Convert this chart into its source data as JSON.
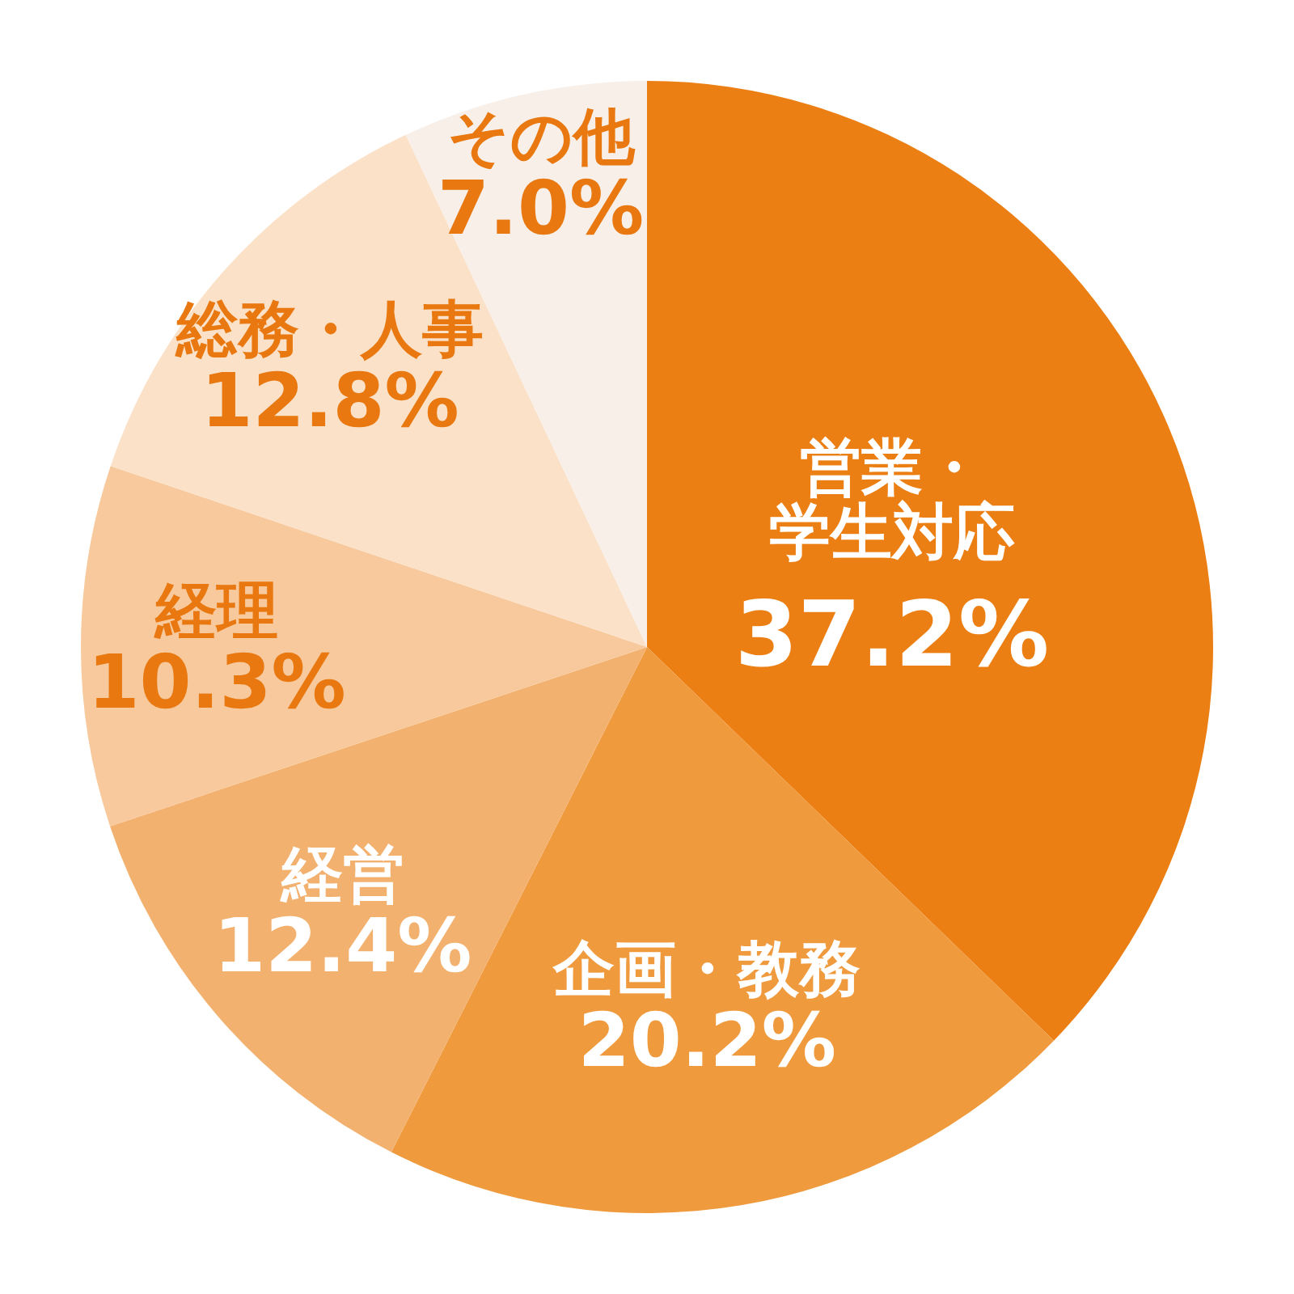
{
  "chart_data": {
    "type": "pie",
    "categories": [
      "営業・学生対応",
      "企画・教務",
      "経営",
      "経理",
      "総務・人事",
      "その他"
    ],
    "values": [
      37.2,
      20.2,
      12.4,
      10.3,
      12.8,
      7.0
    ],
    "value_labels": [
      "37.2%",
      "20.2%",
      "12.4%",
      "10.3%",
      "12.8%",
      "7.0%"
    ],
    "colors": [
      "#ec7f13",
      "#f09a3e",
      "#f3b16f",
      "#f7c99c",
      "#fbe1c8",
      "#f7efe8"
    ]
  }
}
